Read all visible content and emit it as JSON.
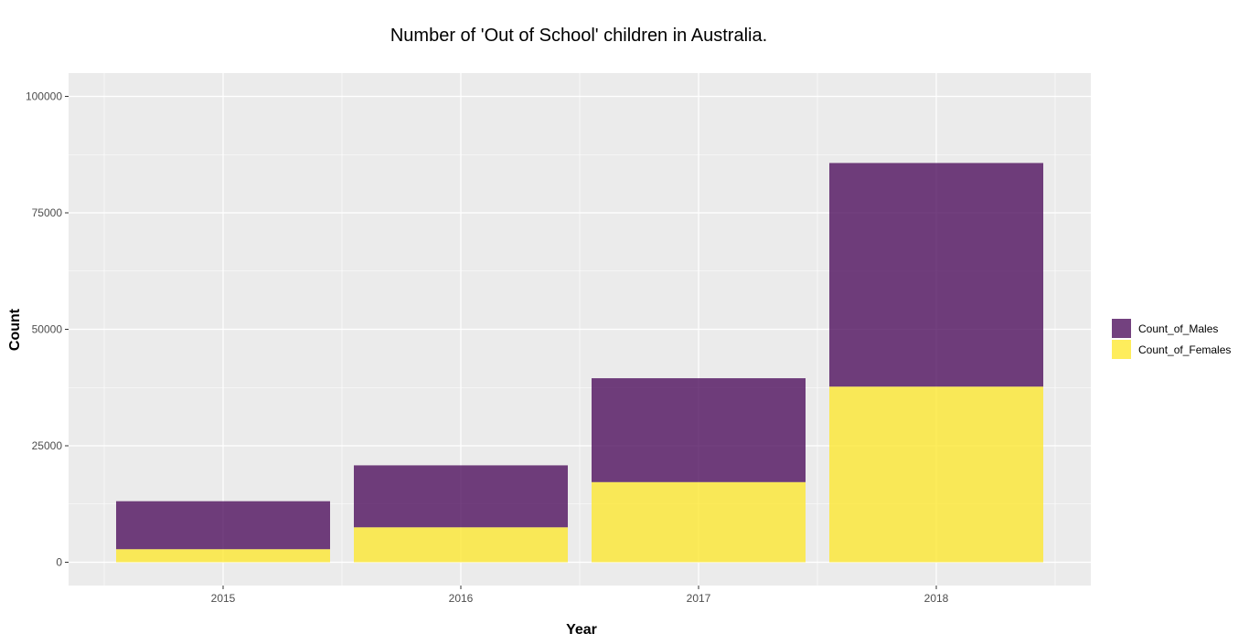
{
  "chart_data": {
    "type": "bar",
    "stacked": true,
    "title": "Number of 'Out of School' children in Australia.",
    "xlabel": "Year",
    "ylabel": "Count",
    "categories": [
      "2015",
      "2016",
      "2017",
      "2018"
    ],
    "series": [
      {
        "name": "Count_of_Males",
        "values": [
          10300,
          13300,
          22300,
          48000
        ],
        "color": "#440154"
      },
      {
        "name": "Count_of_Females",
        "values": [
          2800,
          7500,
          17200,
          37700
        ],
        "color": "#FDE725"
      }
    ],
    "ylim": [
      -5000,
      105000
    ],
    "yticks": [
      0,
      25000,
      50000,
      75000,
      100000
    ],
    "ytick_labels": [
      "0",
      "25000",
      "50000",
      "75000",
      "100000"
    ],
    "grid": true,
    "legend_position": "right",
    "panel_background": "#EBEBEB"
  }
}
